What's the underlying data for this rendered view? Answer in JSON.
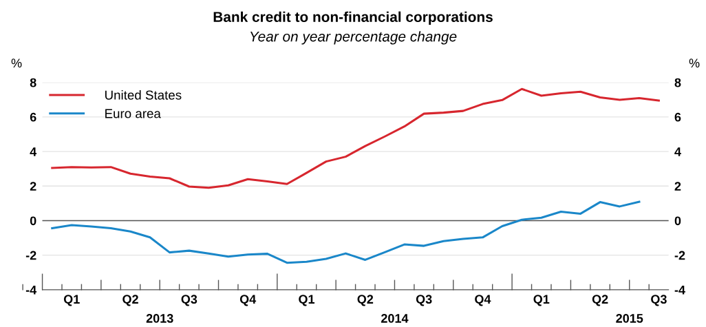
{
  "chart_data": {
    "type": "line",
    "title": "Bank credit to non-financial corporations",
    "subtitle": "Year on year percentage change",
    "ylabel": "%",
    "y2label": "%",
    "x": [
      "2013-01",
      "2013-02",
      "2013-03",
      "2013-04",
      "2013-05",
      "2013-06",
      "2013-07",
      "2013-08",
      "2013-09",
      "2013-10",
      "2013-11",
      "2013-12",
      "2014-01",
      "2014-02",
      "2014-03",
      "2014-04",
      "2014-05",
      "2014-06",
      "2014-07",
      "2014-08",
      "2014-09",
      "2014-10",
      "2014-11",
      "2014-12",
      "2015-01",
      "2015-02",
      "2015-03",
      "2015-04",
      "2015-05",
      "2015-06",
      "2015-07",
      "2015-08"
    ],
    "series": [
      {
        "name": "United States",
        "color": "#d7262e",
        "values": [
          3.05,
          3.1,
          3.08,
          3.1,
          2.72,
          2.55,
          2.45,
          1.97,
          1.9,
          2.04,
          2.4,
          2.27,
          2.12,
          2.76,
          3.42,
          3.7,
          4.32,
          4.87,
          5.45,
          6.19,
          6.25,
          6.35,
          6.75,
          6.98,
          7.62,
          7.23,
          7.37,
          7.46,
          7.13,
          6.99,
          7.09,
          6.95
        ]
      },
      {
        "name": "Euro area",
        "color": "#1a87c9",
        "values": [
          -0.44,
          -0.26,
          -0.34,
          -0.44,
          -0.63,
          -0.97,
          -1.84,
          -1.74,
          -1.9,
          -2.08,
          -1.96,
          -1.92,
          -2.44,
          -2.38,
          -2.21,
          -1.9,
          -2.27,
          -1.83,
          -1.38,
          -1.46,
          -1.19,
          -1.06,
          -0.97,
          -0.32,
          0.05,
          0.17,
          0.52,
          0.4,
          1.07,
          0.82,
          1.09,
          null
        ]
      }
    ],
    "xlim": [
      "2012-12-16",
      "2015-08-16"
    ],
    "xticks": [
      {
        "value": "2013-02-01",
        "label": "Q1"
      },
      {
        "value": "2013-05-01",
        "label": "Q2"
      },
      {
        "value": "2013-08-01",
        "label": "Q3"
      },
      {
        "value": "2013-11-01",
        "label": "Q4"
      },
      {
        "value": "2014-02-01",
        "label": "Q1"
      },
      {
        "value": "2014-05-01",
        "label": "Q2"
      },
      {
        "value": "2014-08-01",
        "label": "Q3"
      },
      {
        "value": "2014-11-01",
        "label": "Q4"
      },
      {
        "value": "2015-02-01",
        "label": "Q1"
      },
      {
        "value": "2015-05-01",
        "label": "Q2"
      },
      {
        "value": "2015-08-01",
        "label": "Q3"
      }
    ],
    "x2lim": [
      "2012-12-16",
      "2015-08-16"
    ],
    "x2ticks": [
      {
        "value": "2013-06-16",
        "label": "2013"
      },
      {
        "value": "2014-06-16",
        "label": "2014"
      },
      {
        "value": "2015-06-16",
        "label": "2015"
      }
    ],
    "ylim": [
      -4,
      8
    ],
    "yticks": [
      -4,
      -2,
      0,
      2,
      4,
      6,
      8
    ],
    "y2lim": [
      -4,
      8
    ],
    "y2ticks": [
      -4,
      -2,
      0,
      2,
      4,
      6,
      8
    ],
    "ref_lines": [
      {
        "axis": "y",
        "value": 0,
        "color": "#555555"
      }
    ],
    "grid": "y",
    "legend": "top left"
  }
}
